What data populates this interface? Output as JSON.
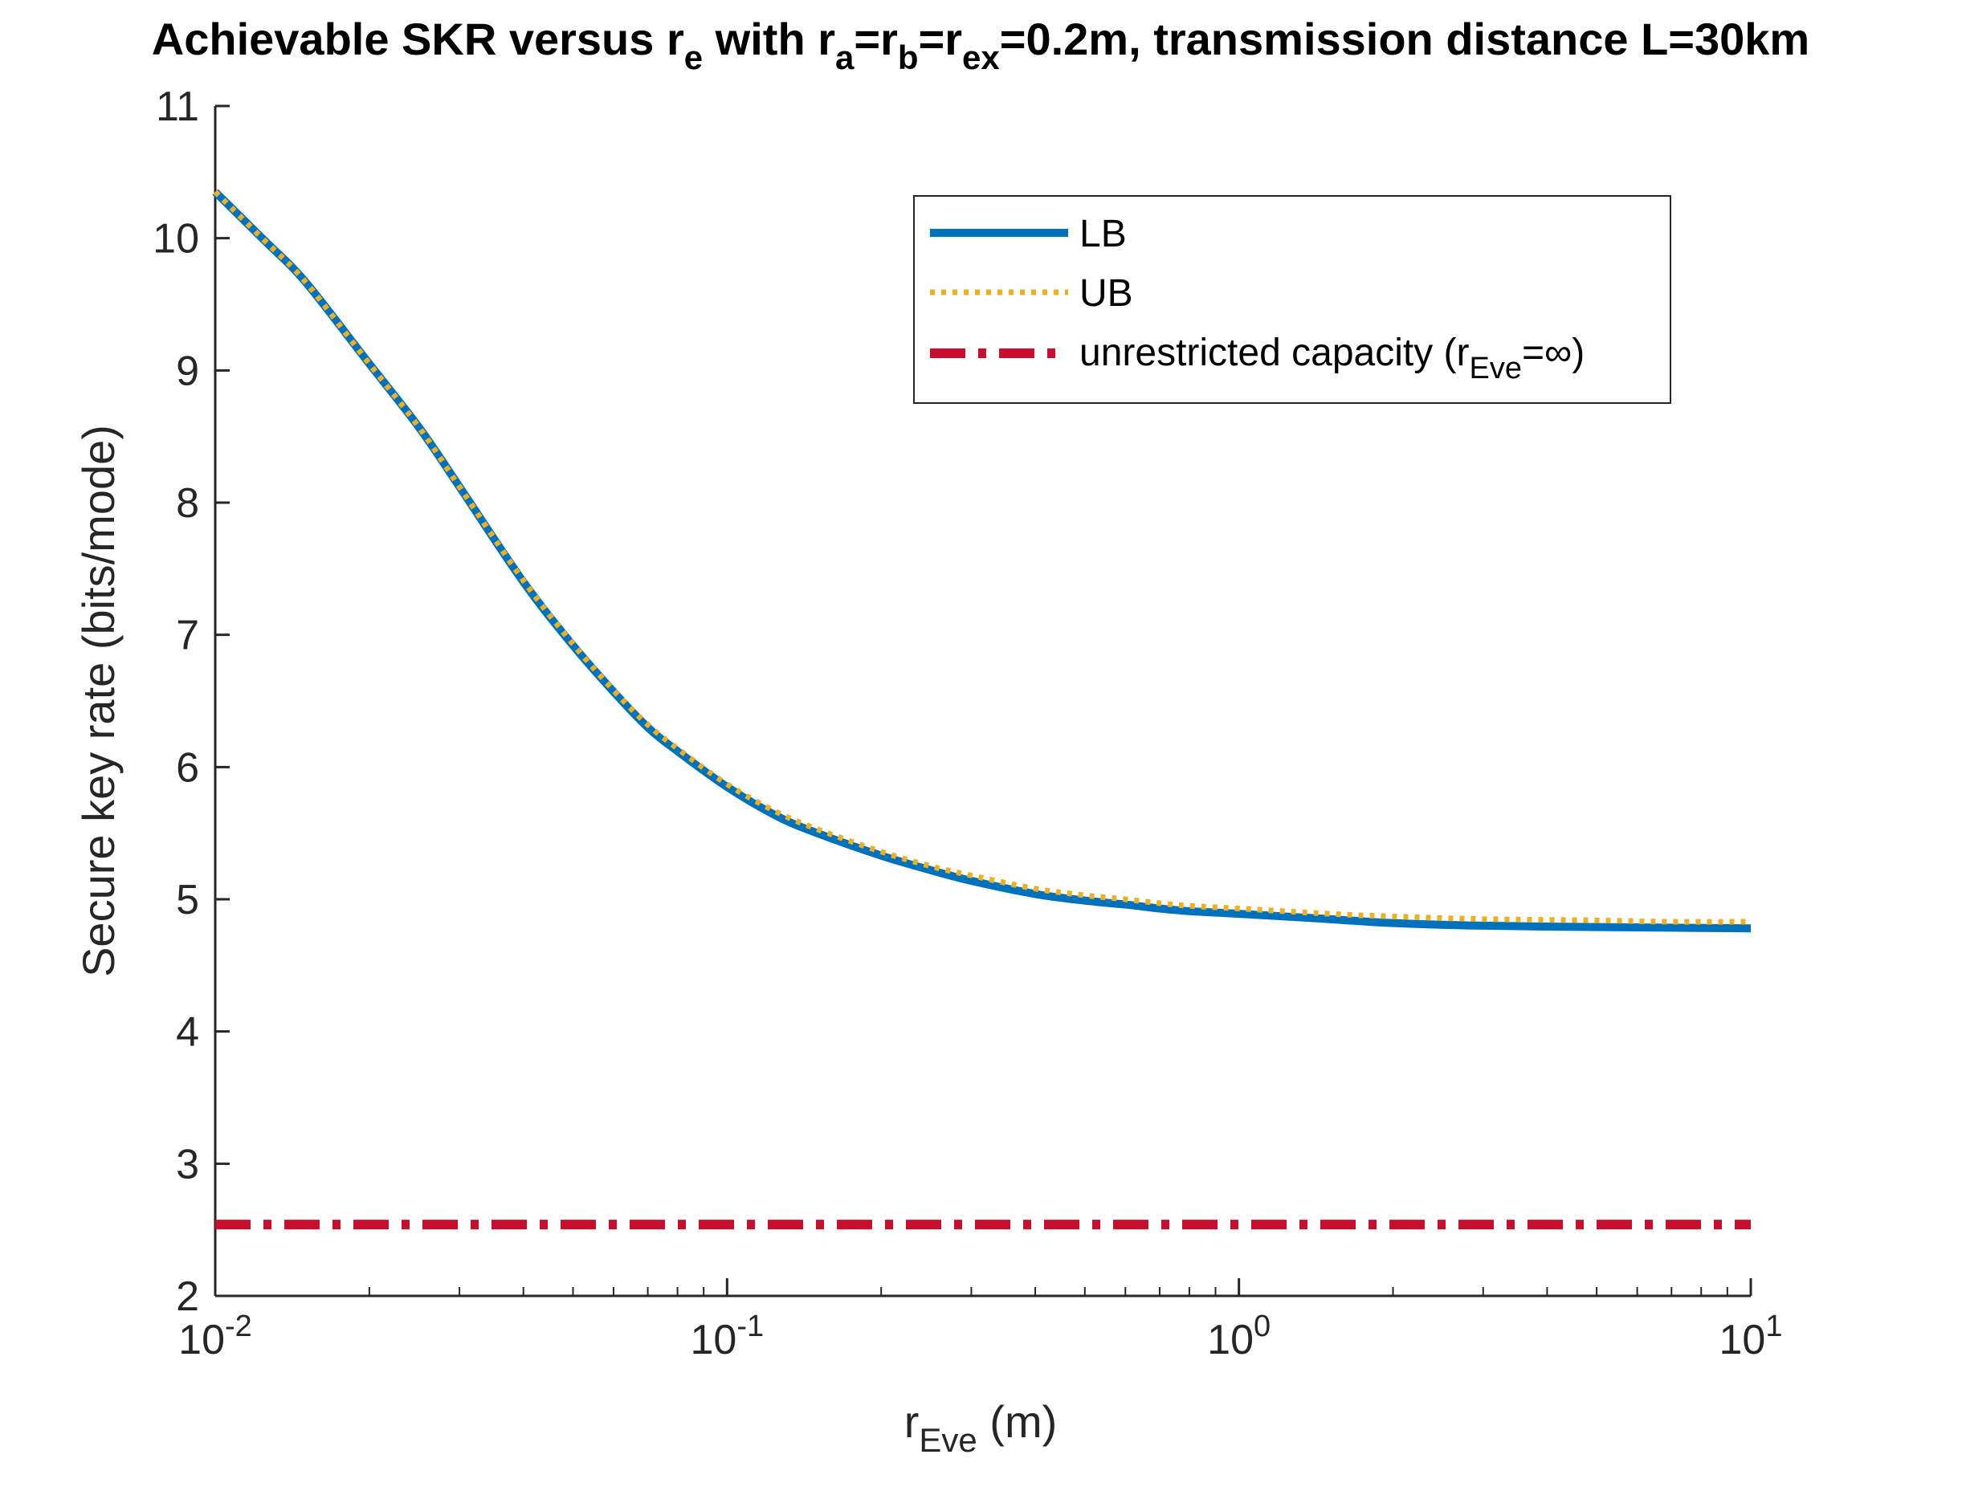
{
  "chart_data": {
    "type": "line",
    "title": {
      "prefix": "Achievable SKR versus r",
      "sub_e": "e",
      "with_r": " with r",
      "sub_a": "a",
      "eq_r1": "=r",
      "sub_b": "b",
      "eq_r2": "=r",
      "sub_ex": "ex",
      "suffix": "=0.2m, transmission distance L=30km"
    },
    "xlabel": {
      "main": "r",
      "sub": "Eve",
      "unit": " (m)"
    },
    "ylabel": "Secure key rate (bits/mode)",
    "xscale": "log",
    "xlim": [
      0.01,
      10
    ],
    "ylim": [
      2,
      11
    ],
    "x_ticks": [
      {
        "value": 0.01,
        "base": "10",
        "exp": "-2"
      },
      {
        "value": 0.1,
        "base": "10",
        "exp": "-1"
      },
      {
        "value": 1,
        "base": "10",
        "exp": "0"
      },
      {
        "value": 10,
        "base": "10",
        "exp": "1"
      }
    ],
    "y_ticks": [
      "2",
      "3",
      "4",
      "5",
      "6",
      "7",
      "8",
      "9",
      "10",
      "11"
    ],
    "legend_position": "top-right",
    "series": [
      {
        "name": "LB",
        "color": "#0072BD",
        "style": "solid",
        "x": [
          0.01,
          0.0125,
          0.015,
          0.02,
          0.025,
          0.03,
          0.04,
          0.05,
          0.06,
          0.07,
          0.08,
          0.1,
          0.125,
          0.15,
          0.2,
          0.25,
          0.3,
          0.4,
          0.5,
          0.6,
          0.7,
          0.8,
          1,
          1.5,
          2,
          3,
          5,
          7,
          10
        ],
        "values": [
          10.35,
          9.98,
          9.67,
          9.05,
          8.57,
          8.12,
          7.4,
          6.92,
          6.57,
          6.3,
          6.12,
          5.85,
          5.63,
          5.5,
          5.33,
          5.22,
          5.14,
          5.04,
          4.99,
          4.96,
          4.93,
          4.91,
          4.89,
          4.85,
          4.82,
          4.8,
          4.79,
          4.785,
          4.78
        ]
      },
      {
        "name": "UB",
        "color": "#EDB120",
        "style": "dotted",
        "x": [
          0.01,
          0.0125,
          0.015,
          0.02,
          0.025,
          0.03,
          0.04,
          0.05,
          0.06,
          0.07,
          0.08,
          0.1,
          0.125,
          0.15,
          0.2,
          0.25,
          0.3,
          0.4,
          0.5,
          0.6,
          0.7,
          0.8,
          1,
          1.5,
          2,
          3,
          5,
          7,
          10
        ],
        "values": [
          10.35,
          9.98,
          9.67,
          9.05,
          8.57,
          8.12,
          7.41,
          6.93,
          6.58,
          6.32,
          6.14,
          5.87,
          5.66,
          5.53,
          5.36,
          5.25,
          5.18,
          5.08,
          5.03,
          5.0,
          4.97,
          4.95,
          4.93,
          4.89,
          4.87,
          4.85,
          4.84,
          4.83,
          4.83
        ]
      },
      {
        "name": "unrestricted capacity",
        "legend_main": "unrestricted capacity (r",
        "legend_sub": "Eve",
        "legend_tail": "=∞)",
        "color": "#C8102E",
        "style": "dashdot",
        "x": [
          0.01,
          10
        ],
        "values": [
          2.54,
          2.54
        ]
      }
    ]
  }
}
